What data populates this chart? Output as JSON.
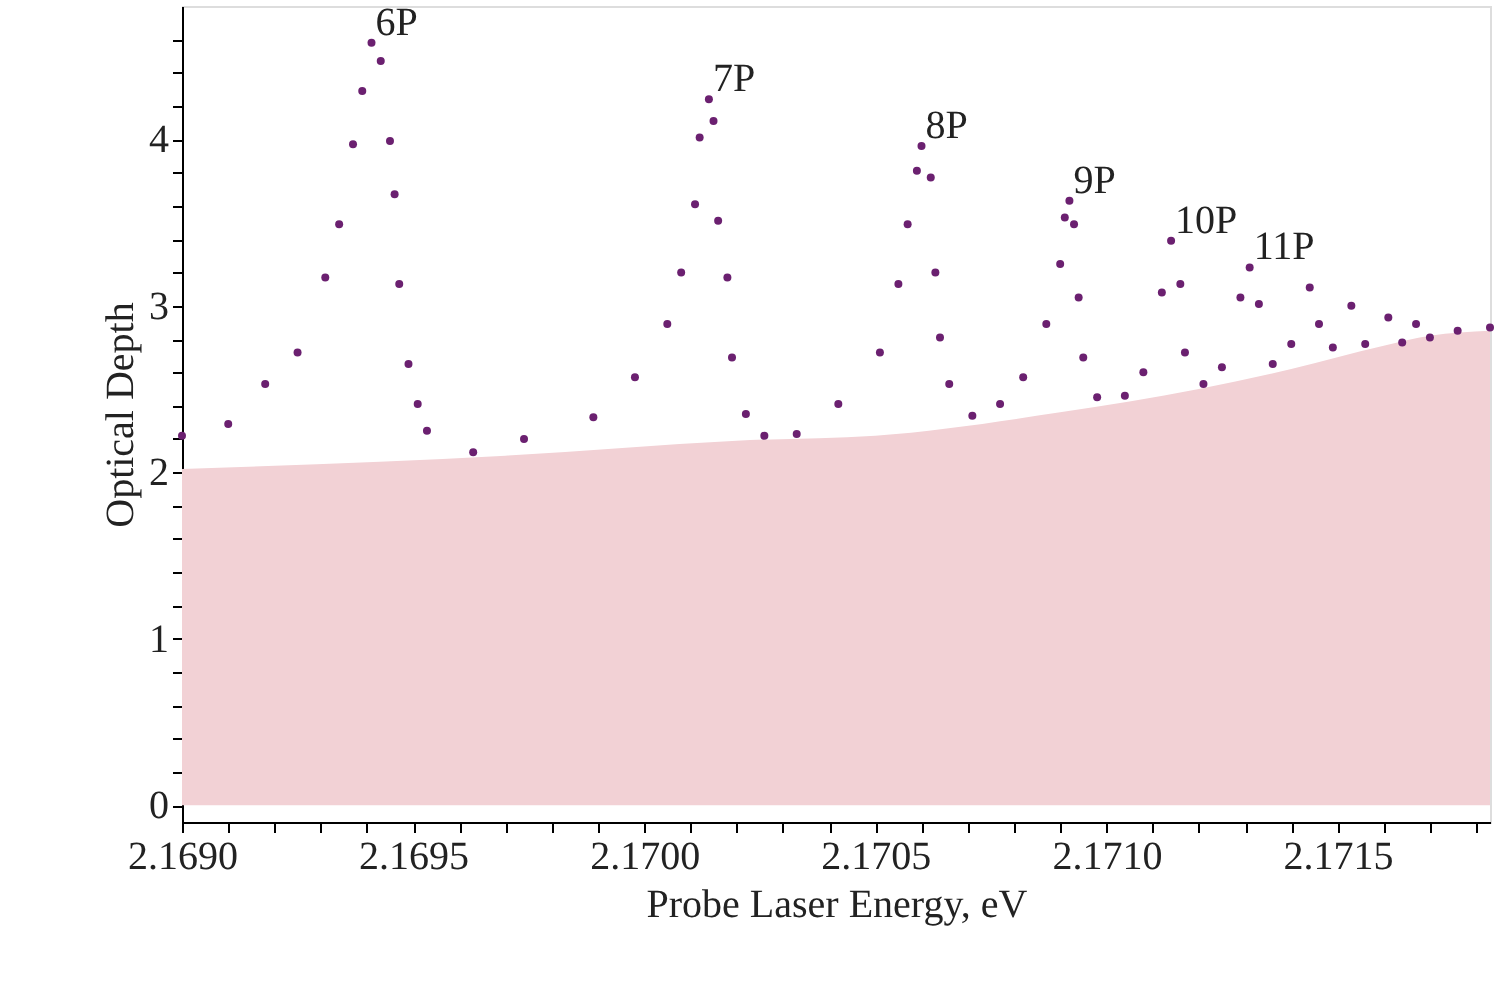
{
  "chart_data": {
    "type": "scatter",
    "xlabel": "Probe Laser Energy, eV",
    "ylabel": "Optical Depth",
    "xlim": [
      2.169,
      2.17183
    ],
    "ylim": [
      -0.1,
      4.8
    ],
    "xticks": [
      {
        "value": 2.169,
        "label": "2.1690"
      },
      {
        "value": 2.1691,
        "label": null
      },
      {
        "value": 2.1692,
        "label": null
      },
      {
        "value": 2.1693,
        "label": null
      },
      {
        "value": 2.1694,
        "label": null
      },
      {
        "value": 2.1695,
        "label": "2.1695"
      },
      {
        "value": 2.1696,
        "label": null
      },
      {
        "value": 2.1697,
        "label": null
      },
      {
        "value": 2.1698,
        "label": null
      },
      {
        "value": 2.1699,
        "label": null
      },
      {
        "value": 2.17,
        "label": "2.1700"
      },
      {
        "value": 2.1701,
        "label": null
      },
      {
        "value": 2.1702,
        "label": null
      },
      {
        "value": 2.1703,
        "label": null
      },
      {
        "value": 2.1704,
        "label": null
      },
      {
        "value": 2.1705,
        "label": "2.1705"
      },
      {
        "value": 2.1706,
        "label": null
      },
      {
        "value": 2.1707,
        "label": null
      },
      {
        "value": 2.1708,
        "label": null
      },
      {
        "value": 2.1709,
        "label": null
      },
      {
        "value": 2.171,
        "label": "2.1710"
      },
      {
        "value": 2.1711,
        "label": null
      },
      {
        "value": 2.1712,
        "label": null
      },
      {
        "value": 2.1713,
        "label": null
      },
      {
        "value": 2.1714,
        "label": null
      },
      {
        "value": 2.1715,
        "label": "2.1715"
      },
      {
        "value": 2.1716,
        "label": null
      },
      {
        "value": 2.1717,
        "label": null
      },
      {
        "value": 2.1718,
        "label": null
      }
    ],
    "yticks": [
      0,
      {
        "value": 0.2,
        "label": null
      },
      {
        "value": 0.4,
        "label": null
      },
      {
        "value": 0.6,
        "label": null
      },
      {
        "value": 0.8,
        "label": null
      },
      1,
      {
        "value": 1.2,
        "label": null
      },
      {
        "value": 1.4,
        "label": null
      },
      {
        "value": 1.6,
        "label": null
      },
      {
        "value": 1.8,
        "label": null
      },
      2,
      {
        "value": 2.2,
        "label": null
      },
      {
        "value": 2.4,
        "label": null
      },
      {
        "value": 2.6,
        "label": null
      },
      {
        "value": 2.8,
        "label": null
      },
      3,
      {
        "value": 3.2,
        "label": null
      },
      {
        "value": 3.4,
        "label": null
      },
      {
        "value": 3.6,
        "label": null
      },
      {
        "value": 3.8,
        "label": null
      },
      4,
      {
        "value": 4.2,
        "label": null
      },
      {
        "value": 4.4,
        "label": null
      },
      {
        "value": 4.6,
        "label": null
      }
    ],
    "series": [
      {
        "type": "area",
        "color": "#f2d1d5",
        "x": [
          2.169,
          2.1697,
          2.1702,
          2.1705,
          2.1709,
          2.1712,
          2.1714,
          2.1716,
          2.1717,
          2.17183
        ],
        "values": [
          2.02,
          2.1,
          2.19,
          2.22,
          2.36,
          2.5,
          2.62,
          2.76,
          2.82,
          2.85
        ]
      },
      {
        "color": "#6b2070",
        "marker": "circle",
        "x": [
          2.169,
          2.1691,
          2.16918,
          2.16925,
          2.16931,
          2.16934,
          2.16937,
          2.16939,
          2.16941,
          2.16943,
          2.16945,
          2.16946,
          2.16947,
          2.16949,
          2.16951,
          2.16953,
          2.16963,
          2.16974,
          2.16989,
          2.16998,
          2.17005,
          2.17008,
          2.17011,
          2.17012,
          2.17014,
          2.17015,
          2.17016,
          2.17018,
          2.17019,
          2.17022,
          2.17026,
          2.17033,
          2.17042,
          2.17051,
          2.17055,
          2.17057,
          2.17059,
          2.1706,
          2.17062,
          2.17063,
          2.17064,
          2.17066,
          2.17071,
          2.17077,
          2.17082,
          2.17087,
          2.1709,
          2.17091,
          2.17092,
          2.17093,
          2.17094,
          2.17095,
          2.17098,
          2.17104,
          2.17108,
          2.17112,
          2.17114,
          2.17116,
          2.17117,
          2.17121,
          2.17125,
          2.17129,
          2.17131,
          2.17133,
          2.17136,
          2.1714,
          2.17144,
          2.17146,
          2.17149,
          2.17153,
          2.17156,
          2.17161,
          2.17164,
          2.17167,
          2.1717,
          2.17176,
          2.17183
        ],
        "values": [
          2.22,
          2.29,
          2.53,
          2.72,
          3.17,
          3.49,
          3.97,
          4.29,
          4.58,
          4.47,
          3.99,
          3.67,
          3.13,
          2.65,
          2.41,
          2.25,
          2.12,
          2.2,
          2.33,
          2.57,
          2.89,
          3.2,
          3.61,
          4.01,
          4.24,
          4.11,
          3.51,
          3.17,
          2.69,
          2.35,
          2.22,
          2.23,
          2.41,
          2.72,
          3.13,
          3.49,
          3.81,
          3.96,
          3.77,
          3.2,
          2.81,
          2.53,
          2.34,
          2.41,
          2.57,
          2.89,
          3.25,
          3.53,
          3.63,
          3.49,
          3.05,
          2.69,
          2.45,
          2.46,
          2.6,
          3.08,
          3.39,
          3.13,
          2.72,
          2.53,
          2.63,
          3.05,
          3.23,
          3.01,
          2.65,
          2.77,
          3.11,
          2.89,
          2.75,
          3.0,
          2.77,
          2.93,
          2.78,
          2.89,
          2.81,
          2.85,
          2.87
        ]
      }
    ],
    "annotations": [
      {
        "text": "6P",
        "x": 2.16941,
        "y": 4.58
      },
      {
        "text": "7P",
        "x": 2.17014,
        "y": 4.24
      },
      {
        "text": "8P",
        "x": 2.1706,
        "y": 3.96
      },
      {
        "text": "9P",
        "x": 2.17092,
        "y": 3.63
      },
      {
        "text": "10P",
        "x": 2.17114,
        "y": 3.39
      },
      {
        "text": "11P",
        "x": 2.17131,
        "y": 3.23
      }
    ]
  }
}
